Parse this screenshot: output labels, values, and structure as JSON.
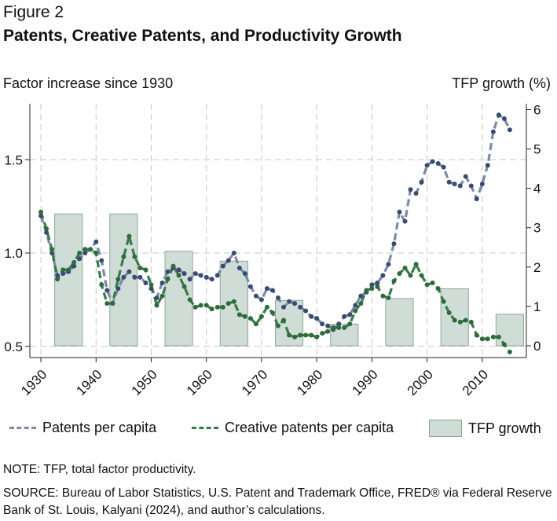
{
  "figure_label": "Figure 2",
  "title": "Patents, Creative Patents, and Productivity Growth",
  "left_axis_title": "Factor increase since 1930",
  "right_axis_title": "TFP growth (%)",
  "note": "NOTE: TFP, total factor productivity.",
  "source": "SOURCE: Bureau of Labor Statistics, U.S. Patent and Trademark Office, FRED® via Federal Reserve Bank of St. Louis, Kalyani (2024), and author’s calculations.",
  "legend": [
    {
      "label": "Patents per capita",
      "kind": "dash",
      "color": "#7d89a8"
    },
    {
      "label": "Creative patents per capita",
      "kind": "dash",
      "color": "#3a7a4a"
    },
    {
      "label": "TFP growth",
      "kind": "box",
      "color": "#cfddd6"
    }
  ],
  "colors": {
    "patents_line": "#7d89a8",
    "patents_dot": "#3a4b72",
    "creative_line": "#3a7a4a",
    "creative_dot": "#2f6b3c",
    "tfp_fill": "#cfddd6",
    "tfp_stroke": "#8fa69c",
    "grid": "#c8c8c8"
  },
  "chart_data": {
    "type": "line",
    "x_ticks": [
      1930,
      1940,
      1950,
      1960,
      1970,
      1980,
      1990,
      2000,
      2010
    ],
    "xlim": [
      1928,
      2018
    ],
    "left_axis": {
      "ticks": [
        0.5,
        1.0,
        1.5
      ],
      "tick_labels": [
        "0.5",
        "1.0",
        "1.5"
      ],
      "ylim": [
        0.44,
        1.8
      ]
    },
    "right_axis": {
      "ticks": [
        0,
        1,
        2,
        3,
        4,
        5,
        6
      ],
      "tick_labels": [
        "0",
        "1",
        "2",
        "3",
        "4",
        "5",
        "6"
      ],
      "ylim": [
        -0.3,
        6.15
      ]
    },
    "grid": true,
    "series": [
      {
        "name": "Patents per capita",
        "axis": "left",
        "x": [
          1930,
          1931,
          1932,
          1933,
          1934,
          1935,
          1936,
          1937,
          1938,
          1939,
          1940,
          1941,
          1942,
          1943,
          1944,
          1945,
          1946,
          1947,
          1948,
          1949,
          1950,
          1951,
          1952,
          1953,
          1954,
          1955,
          1956,
          1957,
          1958,
          1959,
          1960,
          1961,
          1962,
          1963,
          1964,
          1965,
          1966,
          1967,
          1968,
          1969,
          1970,
          1971,
          1972,
          1973,
          1974,
          1975,
          1976,
          1977,
          1978,
          1979,
          1980,
          1981,
          1982,
          1983,
          1984,
          1985,
          1986,
          1987,
          1988,
          1989,
          1990,
          1991,
          1992,
          1993,
          1994,
          1995,
          1996,
          1997,
          1998,
          1999,
          2000,
          2001,
          2002,
          2003,
          2004,
          2005,
          2006,
          2007,
          2008,
          2009,
          2010,
          2011,
          2012,
          2013,
          2014,
          2015
        ],
        "values": [
          1.2,
          1.11,
          1.0,
          0.88,
          0.89,
          0.9,
          0.93,
          0.97,
          1.0,
          1.02,
          1.06,
          0.96,
          0.8,
          0.73,
          0.81,
          0.87,
          0.9,
          0.87,
          0.87,
          0.84,
          0.81,
          0.76,
          0.84,
          0.9,
          0.92,
          0.91,
          0.89,
          0.86,
          0.89,
          0.88,
          0.87,
          0.86,
          0.88,
          0.93,
          0.96,
          1.0,
          0.92,
          0.89,
          0.82,
          0.77,
          0.75,
          0.81,
          0.8,
          0.76,
          0.71,
          0.74,
          0.73,
          0.71,
          0.69,
          0.66,
          0.65,
          0.62,
          0.61,
          0.59,
          0.62,
          0.66,
          0.67,
          0.72,
          0.77,
          0.79,
          0.83,
          0.84,
          0.88,
          0.94,
          1.05,
          1.22,
          1.17,
          1.34,
          1.32,
          1.38,
          1.47,
          1.49,
          1.48,
          1.46,
          1.38,
          1.37,
          1.36,
          1.41,
          1.36,
          1.29,
          1.37,
          1.47,
          1.65,
          1.74,
          1.72,
          1.66
        ]
      },
      {
        "name": "Creative patents per capita",
        "axis": "left",
        "x": [
          1930,
          1931,
          1932,
          1933,
          1934,
          1935,
          1936,
          1937,
          1938,
          1939,
          1940,
          1941,
          1942,
          1943,
          1944,
          1945,
          1946,
          1947,
          1948,
          1949,
          1950,
          1951,
          1952,
          1953,
          1954,
          1955,
          1956,
          1957,
          1958,
          1959,
          1960,
          1961,
          1962,
          1963,
          1964,
          1965,
          1966,
          1967,
          1968,
          1969,
          1970,
          1971,
          1972,
          1973,
          1974,
          1975,
          1976,
          1977,
          1978,
          1979,
          1980,
          1981,
          1982,
          1983,
          1984,
          1985,
          1986,
          1987,
          1988,
          1989,
          1990,
          1991,
          1992,
          1993,
          1994,
          1995,
          1996,
          1997,
          1998,
          1999,
          2000,
          2001,
          2002,
          2003,
          2004,
          2005,
          2006,
          2007,
          2008,
          2009,
          2010,
          2011,
          2012,
          2013,
          2014,
          2015
        ],
        "values": [
          1.22,
          1.13,
          1.02,
          0.86,
          0.91,
          0.91,
          0.95,
          1.0,
          1.02,
          1.02,
          1.0,
          0.83,
          0.73,
          0.73,
          0.86,
          0.98,
          1.09,
          0.98,
          0.92,
          0.91,
          0.83,
          0.72,
          0.77,
          0.86,
          0.93,
          0.88,
          0.82,
          0.75,
          0.71,
          0.72,
          0.72,
          0.7,
          0.71,
          0.71,
          0.73,
          0.74,
          0.67,
          0.66,
          0.65,
          0.62,
          0.66,
          0.71,
          0.68,
          0.61,
          0.64,
          0.56,
          0.55,
          0.56,
          0.56,
          0.56,
          0.55,
          0.57,
          0.58,
          0.6,
          0.6,
          0.6,
          0.62,
          0.69,
          0.73,
          0.8,
          0.81,
          0.82,
          0.77,
          0.76,
          0.85,
          0.89,
          0.92,
          0.88,
          0.94,
          0.88,
          0.83,
          0.84,
          0.81,
          0.74,
          0.68,
          0.64,
          0.63,
          0.64,
          0.63,
          0.56,
          0.54,
          0.54,
          0.55,
          0.55,
          0.51,
          0.47
        ]
      },
      {
        "name": "TFP growth",
        "type": "bar",
        "axis": "right",
        "bars": [
          {
            "start": 1932.5,
            "end": 1937.5,
            "value": 3.35
          },
          {
            "start": 1942.5,
            "end": 1947.5,
            "value": 3.35
          },
          {
            "start": 1952.5,
            "end": 1957.5,
            "value": 2.4
          },
          {
            "start": 1962.5,
            "end": 1967.5,
            "value": 2.15
          },
          {
            "start": 1972.5,
            "end": 1977.5,
            "value": 1.15
          },
          {
            "start": 1982.5,
            "end": 1987.5,
            "value": 0.55
          },
          {
            "start": 1992.5,
            "end": 1997.5,
            "value": 1.2
          },
          {
            "start": 2002.5,
            "end": 2007.5,
            "value": 1.45
          },
          {
            "start": 2012.5,
            "end": 2017.5,
            "value": 0.8
          }
        ]
      }
    ]
  }
}
